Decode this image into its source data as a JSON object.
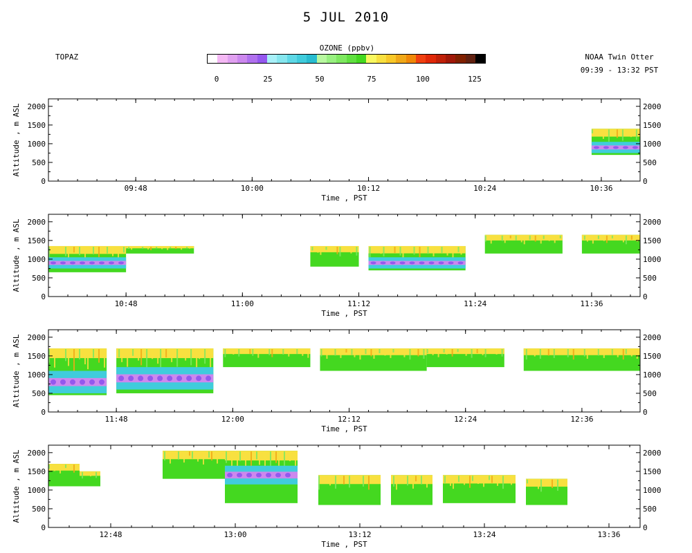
{
  "header": {
    "title": "5 JUL 2010",
    "instrument": "TOPAZ",
    "platform": "NOAA Twin Otter",
    "period": "09:39 - 13:32 PST"
  },
  "colorbar": {
    "label": "OZONE (ppbv)",
    "ticks": [
      "0",
      "25",
      "50",
      "75",
      "100",
      "125"
    ],
    "range": [
      0,
      130
    ],
    "colors": [
      "#ffffff",
      "#f4b8f4",
      "#e0a0f0",
      "#cc88ee",
      "#b070ee",
      "#9458ee",
      "#a8f0f8",
      "#86e6ee",
      "#5ed8e6",
      "#40ccdc",
      "#28bcd0",
      "#b8f8a0",
      "#98f080",
      "#7ee860",
      "#60e040",
      "#44d820",
      "#f8f860",
      "#f8e040",
      "#f8c828",
      "#f0a818",
      "#f08808",
      "#f04010",
      "#e02808",
      "#c02008",
      "#a01808",
      "#802000",
      "#602010",
      "#000000"
    ]
  },
  "chart_data": [
    {
      "type": "heatmap",
      "xlabel": "Time , PST",
      "ylabel": "Altitude , m ASL",
      "xlim": [
        "09:39",
        "10:40"
      ],
      "xticks": [
        "09:48",
        "10:00",
        "10:12",
        "10:24",
        "10:36"
      ],
      "ylim": [
        0,
        2200
      ],
      "yticks": [
        "0",
        "500",
        "1000",
        "1500",
        "2000"
      ],
      "series": [
        {
          "t0": "10:35",
          "t1": "10:40",
          "bottom": 700,
          "top": 1400,
          "core_bottom": 750,
          "core_top": 1050
        }
      ]
    },
    {
      "type": "heatmap",
      "xlabel": "Time , PST",
      "ylabel": "Altitude , m ASL",
      "xlim": [
        "10:40",
        "11:41"
      ],
      "xticks": [
        "10:48",
        "11:00",
        "11:12",
        "11:24",
        "11:36"
      ],
      "ylim": [
        0,
        2200
      ],
      "yticks": [
        "0",
        "500",
        "1000",
        "1500",
        "2000"
      ],
      "series": [
        {
          "t0": "10:40",
          "t1": "10:48",
          "bottom": 650,
          "top": 1350,
          "core_bottom": 750,
          "core_top": 1050
        },
        {
          "t0": "10:48",
          "t1": "10:55",
          "bottom": 1150,
          "top": 1350
        },
        {
          "t0": "11:07",
          "t1": "11:12",
          "bottom": 800,
          "top": 1350
        },
        {
          "t0": "11:13",
          "t1": "11:23",
          "bottom": 700,
          "top": 1350,
          "core_bottom": 750,
          "core_top": 1050
        },
        {
          "t0": "11:25",
          "t1": "11:33",
          "bottom": 1150,
          "top": 1650
        },
        {
          "t0": "11:35",
          "t1": "11:41",
          "bottom": 1150,
          "top": 1650
        }
      ]
    },
    {
      "type": "heatmap",
      "xlabel": "Time , PST",
      "ylabel": "Altitude , m ASL",
      "xlim": [
        "11:41",
        "12:42"
      ],
      "xticks": [
        "11:48",
        "12:00",
        "12:12",
        "12:24",
        "12:36"
      ],
      "ylim": [
        0,
        2200
      ],
      "yticks": [
        "0",
        "500",
        "1000",
        "1500",
        "2000"
      ],
      "series": [
        {
          "t0": "11:41",
          "t1": "11:47",
          "bottom": 450,
          "top": 1700,
          "core_bottom": 500,
          "core_top": 1100
        },
        {
          "t0": "11:48",
          "t1": "11:58",
          "bottom": 500,
          "top": 1700,
          "core_bottom": 600,
          "core_top": 1200
        },
        {
          "t0": "11:59",
          "t1": "12:08",
          "bottom": 1200,
          "top": 1700
        },
        {
          "t0": "12:09",
          "t1": "12:20",
          "bottom": 1100,
          "top": 1700
        },
        {
          "t0": "12:20",
          "t1": "12:28",
          "bottom": 1200,
          "top": 1700
        },
        {
          "t0": "12:30",
          "t1": "12:42",
          "bottom": 1100,
          "top": 1700
        }
      ]
    },
    {
      "type": "heatmap",
      "xlabel": "Time , PST",
      "ylabel": "Altitude , m ASL",
      "xlim": [
        "12:42",
        "13:39"
      ],
      "xticks": [
        "12:48",
        "13:00",
        "13:12",
        "13:24",
        "13:36"
      ],
      "ylim": [
        0,
        2200
      ],
      "yticks": [
        "0",
        "500",
        "1000",
        "1500",
        "2000"
      ],
      "series": [
        {
          "t0": "12:42",
          "t1": "12:45",
          "bottom": 1100,
          "top": 1700
        },
        {
          "t0": "12:45",
          "t1": "12:47",
          "bottom": 1100,
          "top": 1500
        },
        {
          "t0": "12:53",
          "t1": "12:59",
          "bottom": 1300,
          "top": 2050
        },
        {
          "t0": "12:59",
          "t1": "13:06",
          "bottom": 650,
          "top": 2050,
          "core_bottom": 1150,
          "core_top": 1650
        },
        {
          "t0": "13:08",
          "t1": "13:14",
          "bottom": 600,
          "top": 1400
        },
        {
          "t0": "13:15",
          "t1": "13:19",
          "bottom": 600,
          "top": 1400
        },
        {
          "t0": "13:20",
          "t1": "13:27",
          "bottom": 650,
          "top": 1400
        },
        {
          "t0": "13:28",
          "t1": "13:32",
          "bottom": 600,
          "top": 1300
        }
      ]
    }
  ]
}
